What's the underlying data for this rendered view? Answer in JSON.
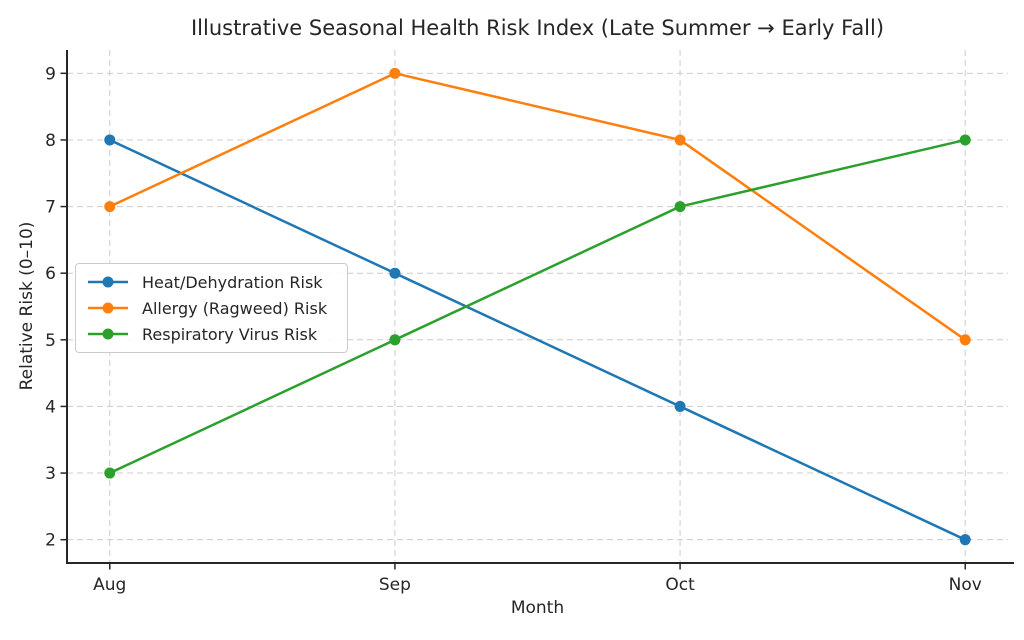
{
  "chart_data": {
    "type": "line",
    "title": "Illustrative Seasonal Health Risk Index (Late Summer → Early Fall)",
    "xlabel": "Month",
    "ylabel": "Relative Risk (0–10)",
    "categories": [
      "Aug",
      "Sep",
      "Oct",
      "Nov"
    ],
    "series": [
      {
        "name": "Heat/Dehydration Risk",
        "color": "#1f77b4",
        "values": [
          8,
          6,
          4,
          2
        ]
      },
      {
        "name": "Allergy (Ragweed) Risk",
        "color": "#ff7f0e",
        "values": [
          7,
          9,
          8,
          5
        ]
      },
      {
        "name": "Respiratory Virus Risk",
        "color": "#2ca02c",
        "values": [
          3,
          5,
          7,
          8
        ]
      }
    ],
    "yticks": [
      2,
      3,
      4,
      5,
      6,
      7,
      8,
      9
    ],
    "ylim": [
      1.65,
      9.35
    ],
    "xlim": [
      -0.15,
      3.15
    ],
    "grid": {
      "enabled": true,
      "style": "dashed",
      "color": "#cccccc"
    },
    "legend": {
      "position": "center-left"
    },
    "marker": "circle",
    "colors": {
      "text": "#262626",
      "spine": "#262626",
      "background": "#ffffff"
    }
  }
}
